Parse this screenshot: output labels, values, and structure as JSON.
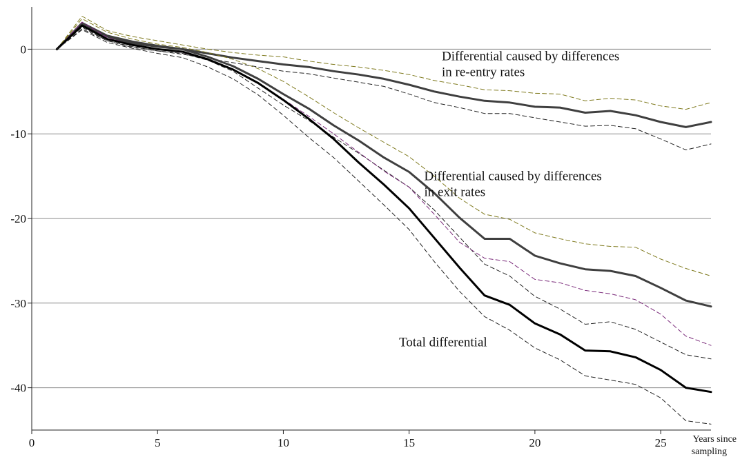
{
  "chart_data": {
    "type": "line",
    "xlabel_lines": [
      "Years since",
      "sampling"
    ],
    "ylabel": "",
    "xlim": [
      0,
      27
    ],
    "ylim": [
      -45,
      5
    ],
    "x_ticks": [
      0,
      5,
      10,
      15,
      20,
      25
    ],
    "y_ticks": [
      0,
      -10,
      -20,
      -30,
      -40
    ],
    "grid": {
      "horizontal": true,
      "vertical": false
    },
    "annotations": [
      {
        "lines": [
          "Differential caused by differences",
          "in re-entry rates"
        ],
        "x": 16.3,
        "y": -1.3
      },
      {
        "lines": [
          "Differential caused by differences",
          "in exit rates"
        ],
        "x": 15.6,
        "y": -15.5
      },
      {
        "lines": [
          "Total differential"
        ],
        "x": 14.6,
        "y": -35.1
      }
    ],
    "series": [
      {
        "style": "solid",
        "color": "#3f3f3f",
        "width": 3,
        "x": [
          1,
          2,
          3,
          4,
          5,
          6,
          7,
          8,
          9,
          10,
          11,
          12,
          13,
          14,
          15,
          16,
          17,
          18,
          19,
          20,
          21,
          22,
          23,
          24,
          25,
          26,
          27
        ],
        "values": [
          0,
          3.1,
          1.6,
          0.9,
          0.4,
          0.0,
          -0.5,
          -1.0,
          -1.4,
          -1.8,
          -2.1,
          -2.6,
          -3.0,
          -3.5,
          -4.2,
          -5.0,
          -5.6,
          -6.1,
          -6.3,
          -6.8,
          -6.9,
          -7.5,
          -7.3,
          -7.8,
          -8.6,
          -9.2,
          -8.6
        ]
      },
      {
        "style": "dashed",
        "color": "#7f7a1e",
        "width": 1,
        "x": [
          1,
          2,
          3,
          4,
          5,
          6,
          7,
          8,
          9,
          10,
          11,
          12,
          13,
          14,
          15,
          16,
          17,
          18,
          19,
          20,
          21,
          22,
          23,
          24,
          25,
          26,
          27
        ],
        "values": [
          0,
          3.9,
          2.2,
          1.5,
          1.0,
          0.5,
          0.0,
          -0.4,
          -0.7,
          -0.9,
          -1.4,
          -1.8,
          -2.1,
          -2.5,
          -3.0,
          -3.7,
          -4.2,
          -4.8,
          -4.9,
          -5.2,
          -5.3,
          -6.1,
          -5.8,
          -6.0,
          -6.7,
          -7.1,
          -6.3
        ]
      },
      {
        "style": "dashed",
        "color": "#222222",
        "width": 1,
        "x": [
          1,
          2,
          3,
          4,
          5,
          6,
          7,
          8,
          9,
          10,
          11,
          12,
          13,
          14,
          15,
          16,
          17,
          18,
          19,
          20,
          21,
          22,
          23,
          24,
          25,
          26,
          27
        ],
        "values": [
          0,
          2.4,
          1.0,
          0.3,
          -0.2,
          -0.6,
          -1.1,
          -1.6,
          -2.1,
          -2.6,
          -2.9,
          -3.4,
          -3.9,
          -4.4,
          -5.3,
          -6.3,
          -6.9,
          -7.6,
          -7.6,
          -8.1,
          -8.6,
          -9.1,
          -9.0,
          -9.4,
          -10.6,
          -11.9,
          -11.2
        ]
      },
      {
        "style": "solid",
        "color": "#3f3f3f",
        "width": 3,
        "x": [
          1,
          2,
          3,
          4,
          5,
          6,
          7,
          8,
          9,
          10,
          11,
          12,
          13,
          14,
          15,
          16,
          17,
          18,
          19,
          20,
          21,
          22,
          23,
          24,
          25,
          26,
          27
        ],
        "values": [
          0,
          3.0,
          1.5,
          0.7,
          0.3,
          0.0,
          -0.9,
          -2.0,
          -3.5,
          -5.3,
          -7.0,
          -9.0,
          -10.8,
          -12.8,
          -14.5,
          -17.0,
          -19.9,
          -22.4,
          -22.4,
          -24.4,
          -25.3,
          -26.0,
          -26.2,
          -26.8,
          -28.2,
          -29.7,
          -30.4
        ]
      },
      {
        "style": "dashed",
        "color": "#7f7a1e",
        "width": 1,
        "x": [
          1,
          2,
          3,
          4,
          5,
          6,
          7,
          8,
          9,
          10,
          11,
          12,
          13,
          14,
          15,
          16,
          17,
          18,
          19,
          20,
          21,
          22,
          23,
          24,
          25,
          26,
          27
        ],
        "values": [
          0,
          3.6,
          2.0,
          1.2,
          0.6,
          0.2,
          -0.4,
          -1.2,
          -2.3,
          -3.8,
          -5.6,
          -7.5,
          -9.3,
          -11.0,
          -12.7,
          -15.0,
          -17.6,
          -19.5,
          -20.1,
          -21.7,
          -22.4,
          -23.0,
          -23.3,
          -23.4,
          -24.8,
          -25.9,
          -26.8
        ]
      },
      {
        "style": "dashed",
        "color": "#222222",
        "width": 1,
        "x": [
          1,
          2,
          3,
          4,
          5,
          6,
          7,
          8,
          9,
          10,
          11,
          12,
          13,
          14,
          15,
          16,
          17,
          18,
          19,
          20,
          21,
          22,
          23,
          24,
          25,
          26,
          27
        ],
        "values": [
          0,
          2.6,
          1.0,
          0.2,
          -0.2,
          -0.5,
          -1.3,
          -2.6,
          -4.6,
          -6.6,
          -8.4,
          -10.4,
          -12.3,
          -14.3,
          -16.3,
          -19.0,
          -22.2,
          -25.4,
          -26.8,
          -29.2,
          -30.7,
          -32.5,
          -32.2,
          -33.1,
          -34.6,
          -36.1,
          -36.6
        ]
      },
      {
        "style": "dashed",
        "color": "#7a2a7a",
        "width": 1,
        "x": [
          1,
          2,
          3,
          4,
          5,
          6,
          7,
          8,
          9,
          10,
          11,
          12,
          13,
          14,
          15,
          16,
          17,
          18,
          19,
          20,
          21,
          22,
          23,
          24,
          25,
          26,
          27
        ],
        "values": [
          0,
          3.2,
          1.4,
          0.5,
          0.0,
          -0.4,
          -1.2,
          -2.4,
          -4.0,
          -5.9,
          -7.9,
          -10.0,
          -12.2,
          -14.4,
          -16.3,
          -19.5,
          -22.8,
          -24.7,
          -25.1,
          -27.2,
          -27.6,
          -28.5,
          -28.9,
          -29.6,
          -31.3,
          -33.9,
          -35.0
        ]
      },
      {
        "style": "solid",
        "color": "#000000",
        "width": 3,
        "x": [
          1,
          2,
          3,
          4,
          5,
          6,
          7,
          8,
          9,
          10,
          11,
          12,
          13,
          14,
          15,
          16,
          17,
          18,
          19,
          20,
          21,
          22,
          23,
          24,
          25,
          26,
          27
        ],
        "values": [
          0,
          2.8,
          1.2,
          0.5,
          0.0,
          -0.3,
          -1.2,
          -2.4,
          -4.0,
          -6.0,
          -8.2,
          -10.6,
          -13.4,
          -16.0,
          -18.8,
          -22.3,
          -25.8,
          -29.1,
          -30.2,
          -32.4,
          -33.7,
          -35.6,
          -35.7,
          -36.4,
          -37.9,
          -40.0,
          -40.5
        ]
      },
      {
        "style": "dashed",
        "color": "#222222",
        "width": 1,
        "x": [
          1,
          2,
          3,
          4,
          5,
          6,
          7,
          8,
          9,
          10,
          11,
          12,
          13,
          14,
          15,
          16,
          17,
          18,
          19,
          20,
          21,
          22,
          23,
          24,
          25,
          26,
          27
        ],
        "values": [
          0,
          2.3,
          0.8,
          0.1,
          -0.5,
          -1.0,
          -2.1,
          -3.5,
          -5.4,
          -7.8,
          -10.4,
          -12.8,
          -15.6,
          -18.4,
          -21.3,
          -25.1,
          -28.6,
          -31.6,
          -33.2,
          -35.3,
          -36.7,
          -38.6,
          -39.1,
          -39.6,
          -41.2,
          -43.9,
          -44.3
        ]
      }
    ]
  }
}
